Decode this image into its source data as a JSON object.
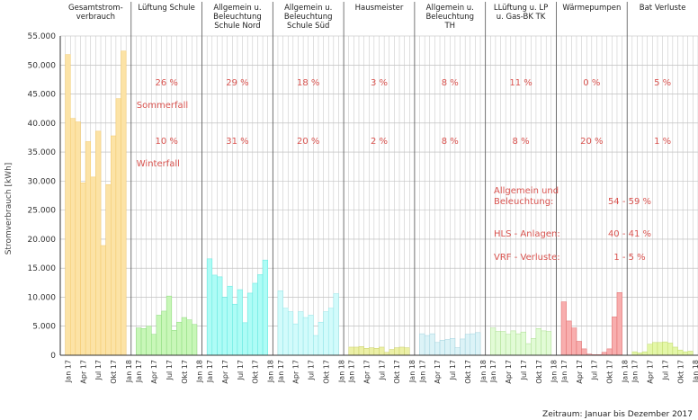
{
  "chart_data": {
    "type": "bar",
    "ylabel": "Stromverbrauch [kWh]",
    "ylim": [
      0,
      55000
    ],
    "y_tick_labels": [
      "0",
      "5.000",
      "10.000",
      "15.000",
      "20.000",
      "25.000",
      "30.000",
      "35.000",
      "40.000",
      "45.000",
      "50.000",
      "55.000"
    ],
    "x_tick_labels": [
      "Jan 17",
      "Apr 17",
      "Jul 17",
      "Okt 17",
      "Jan 18"
    ],
    "footnote": "Zeitraum: Januar bis Dezember 2017",
    "grid": true,
    "annotations": {
      "sommerfall": "Sommerfall",
      "winterfall": "Winterfall",
      "summary": [
        {
          "label": "Allgemein und",
          "value": ""
        },
        {
          "label": "Beleuchtung:",
          "value": "54 - 59 %"
        },
        {
          "label": "HLS - Anlagen:",
          "value": "40 - 41 %"
        },
        {
          "label": "VRF - Verluste:",
          "value": "1 - 5 %"
        }
      ]
    },
    "series": [
      {
        "name": "Gesamtstrom-verbrauch",
        "title_lines": [
          "Gesamtstrom-",
          "verbrauch"
        ],
        "color": "#fce3a6",
        "stroke": "#f2c86a",
        "values": [
          51800,
          40800,
          40200,
          29700,
          36800,
          30700,
          38600,
          18900,
          29400,
          37800,
          44200,
          52400
        ],
        "pct_summer": "",
        "pct_winter": ""
      },
      {
        "name": "Lüftung Schule",
        "title_lines": [
          "Lüftung Schule"
        ],
        "color": "#c8f7b8",
        "stroke": "#8ad97a",
        "values": [
          4700,
          4600,
          5000,
          3600,
          6900,
          7600,
          10200,
          4300,
          5700,
          6500,
          6100,
          5300
        ],
        "pct_summer": "26 %",
        "pct_winter": "10 %"
      },
      {
        "name": "Allgemein u. Beleuchtung Schule Nord",
        "title_lines": [
          "Allgemein u.",
          "Beleuchtung",
          "Schule Nord"
        ],
        "color": "#aefcf6",
        "stroke": "#5fe6dd",
        "values": [
          16600,
          13800,
          13500,
          10000,
          11900,
          8800,
          11300,
          5600,
          10700,
          12400,
          13900,
          16400
        ],
        "pct_summer": "29 %",
        "pct_winter": "31 %"
      },
      {
        "name": "Allgemein u. Beleuchtung Schule Süd",
        "title_lines": [
          "Allgemein u.",
          "Beleuchtung",
          "Schule Süd"
        ],
        "color": "#d2fbfb",
        "stroke": "#8ee4e6",
        "values": [
          11100,
          8100,
          7500,
          5400,
          7500,
          6500,
          6900,
          3400,
          5700,
          7500,
          8100,
          10600
        ],
        "pct_summer": "18 %",
        "pct_winter": "20 %"
      },
      {
        "name": "Hausmeister",
        "title_lines": [
          "Hausmeister"
        ],
        "color": "#ecf0a6",
        "stroke": "#c9cf6a",
        "values": [
          1400,
          1400,
          1500,
          1200,
          1300,
          1200,
          1400,
          500,
          1000,
          1300,
          1400,
          1300
        ],
        "pct_summer": "3 %",
        "pct_winter": "2 %"
      },
      {
        "name": "Allgemein u. Beleuchtung TH",
        "title_lines": [
          "Allgemein u.",
          "Beleuchtung",
          "TH"
        ],
        "color": "#dcf3f7",
        "stroke": "#9ed0dc",
        "values": [
          3700,
          3400,
          3700,
          2200,
          2600,
          2700,
          2900,
          1300,
          2800,
          3600,
          3700,
          3900
        ],
        "pct_summer": "8 %",
        "pct_winter": "8 %"
      },
      {
        "name": "LLüftung u. LP u. Gas-BK TK",
        "title_lines": [
          "LLüftung u. LP",
          "u. Gas-BK TK"
        ],
        "color": "#e2fbd6",
        "stroke": "#a9de8e",
        "values": [
          4700,
          4100,
          4100,
          3600,
          4200,
          3700,
          4000,
          2000,
          2900,
          4600,
          4200,
          4100
        ],
        "pct_summer": "11 %",
        "pct_winter": "8 %"
      },
      {
        "name": "Wärmepumpen",
        "title_lines": [
          "Wärmepumpen"
        ],
        "color": "#f8aeae",
        "stroke": "#e06a6a",
        "values": [
          9200,
          5900,
          4700,
          2400,
          1100,
          200,
          100,
          100,
          500,
          1100,
          6600,
          10800
        ],
        "pct_summer": "0 %",
        "pct_winter": "20 %"
      },
      {
        "name": "Bat Verluste",
        "title_lines": [
          "Bat Verluste"
        ],
        "color": "#e4f7a8",
        "stroke": "#bfd86a",
        "values": [
          600,
          400,
          600,
          1900,
          2200,
          2200,
          2300,
          2100,
          1400,
          900,
          600,
          700
        ],
        "pct_summer": "5 %",
        "pct_winter": "1 %"
      }
    ]
  }
}
